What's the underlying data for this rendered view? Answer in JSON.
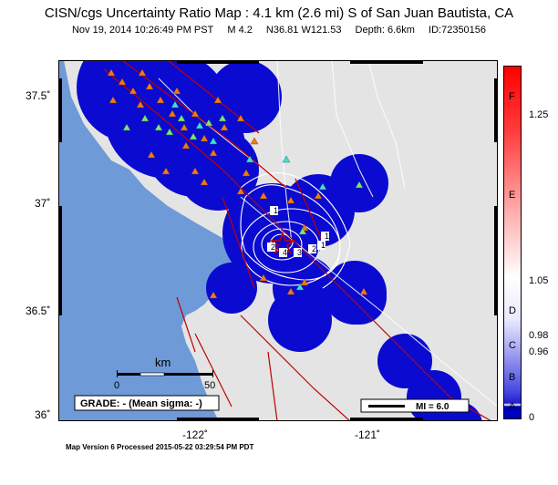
{
  "header": {
    "title": "CISN/cgs Uncertainty Ratio Map : 4.1 km (2.6 mi) S of San Juan Bautista, CA",
    "date": "Nov 19, 2014 10:26:49 PM PST",
    "magnitude": "M 4.2",
    "location": "N36.81 W121.53",
    "depth": "Depth: 6.6km",
    "event_id": "ID:72350156"
  },
  "axes": {
    "lat_labels": [
      "37.5˚",
      "37˚",
      "36.5˚",
      "36˚"
    ],
    "lon_labels": [
      "-122˚",
      "-121˚"
    ]
  },
  "scale_bar": {
    "unit": "km",
    "min_label": "0",
    "max_label": "50"
  },
  "grade": "GRADE: - (Mean sigma: -)",
  "mi_legend": "MI = 6.0",
  "contour_labels": [
    "1",
    "2",
    "3",
    "4",
    "1",
    "2",
    "1"
  ],
  "colorbar": {
    "value_labels": [
      "1.25",
      "1.05",
      "0.98",
      "0.96",
      "0"
    ],
    "grade_labels": [
      "F",
      "E",
      "D",
      "C",
      "B",
      "A"
    ]
  },
  "footer": "Map Version 6 Processed 2015-05-22 03:29:54 PM PDT",
  "colors": {
    "ocean": "#6f9ad8",
    "land": "#e4e4e4",
    "uncertainty": "#0a0ad0",
    "fault": "#c00000",
    "station_orange": "#ef7a1a",
    "station_green": "#7fe07f",
    "station_cyan": "#40e0d0"
  }
}
